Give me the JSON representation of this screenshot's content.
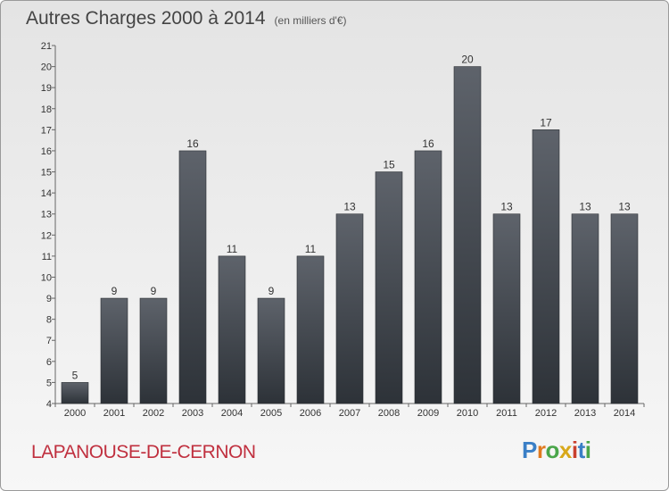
{
  "header": {
    "title": "Autres Charges 2000 à 2014",
    "unit": "(en milliers d'€)"
  },
  "footer": {
    "town": "LAPANOUSE-DE-CERNON",
    "logo": "Proxiti"
  },
  "colors": {
    "bar": "#3f444c",
    "town": "#c0303f"
  },
  "chart_data": {
    "type": "bar",
    "title": "Autres Charges 2000 à 2014",
    "subtitle": "(en milliers d'€)",
    "xlabel": "",
    "ylabel": "",
    "ylim": [
      4,
      21
    ],
    "grid": false,
    "categories": [
      "2000",
      "2001",
      "2002",
      "2003",
      "2004",
      "2005",
      "2006",
      "2007",
      "2008",
      "2009",
      "2010",
      "2011",
      "2012",
      "2013",
      "2014"
    ],
    "values": [
      5,
      9,
      9,
      16,
      11,
      9,
      11,
      13,
      15,
      16,
      20,
      13,
      17,
      13,
      13
    ]
  }
}
